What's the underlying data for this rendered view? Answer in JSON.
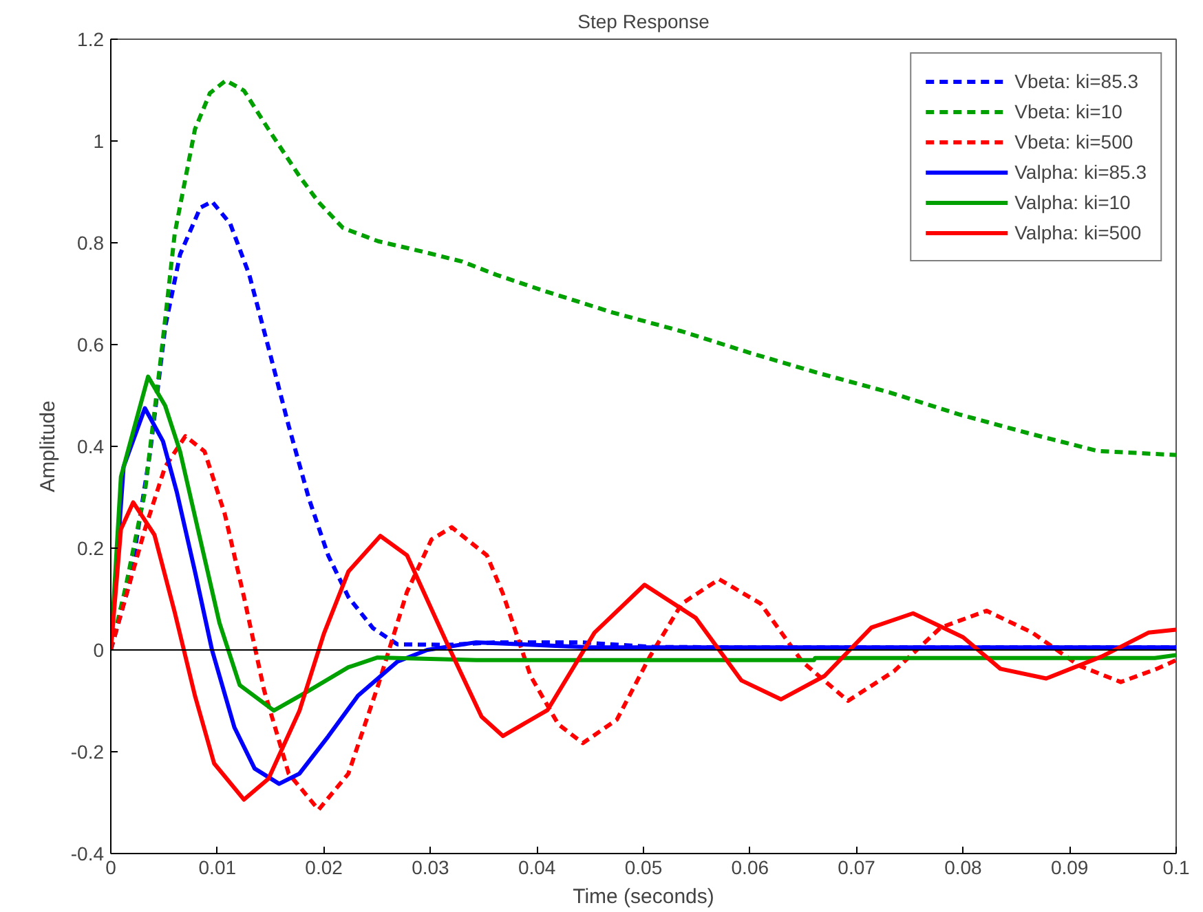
{
  "chart_data": {
    "type": "line",
    "title": "Step Response",
    "xlabel": "Time (seconds)",
    "ylabel": "Amplitude",
    "xlim": [
      0,
      0.1
    ],
    "ylim": [
      -0.4,
      1.2
    ],
    "xticks": [
      0,
      0.01,
      0.02,
      0.03,
      0.04,
      0.05,
      0.06,
      0.07,
      0.08,
      0.09,
      0.1
    ],
    "yticks": [
      -0.4,
      -0.2,
      0,
      0.2,
      0.4,
      0.6,
      0.8,
      1,
      1.2
    ],
    "grid": false,
    "legend": "top right",
    "ref_lines": [
      {
        "axis": "y",
        "value": 0,
        "color": "#000000",
        "line_style": "solid"
      }
    ],
    "series": [
      {
        "name": "Vbeta: ki=85.3",
        "color": "#0000ff",
        "line_style": "dashed",
        "x": [
          0,
          0.0018,
          0.0037,
          0.0051,
          0.0065,
          0.0084,
          0.0095,
          0.0112,
          0.013,
          0.0148,
          0.0167,
          0.0186,
          0.0204,
          0.0223,
          0.0246,
          0.0269,
          0.0316,
          0.0362,
          0.0441,
          0.0508,
          0.06,
          0.08,
          0.1
        ],
        "values": [
          0,
          0.134,
          0.39,
          0.634,
          0.777,
          0.869,
          0.881,
          0.838,
          0.737,
          0.594,
          0.44,
          0.297,
          0.186,
          0.104,
          0.043,
          0.011,
          0.01,
          0.015,
          0.015,
          0.006,
          0.005,
          0.005,
          0.005
        ]
      },
      {
        "name": "Vbeta: ki=10",
        "color": "#00a000",
        "line_style": "dashed",
        "x": [
          0,
          0.0014,
          0.0032,
          0.0047,
          0.006,
          0.0079,
          0.0093,
          0.0108,
          0.0125,
          0.0148,
          0.0177,
          0.0195,
          0.0218,
          0.0251,
          0.0292,
          0.033,
          0.0362,
          0.0406,
          0.0471,
          0.0536,
          0.0601,
          0.0666,
          0.0731,
          0.0796,
          0.0861,
          0.0926,
          0.1
        ],
        "values": [
          0,
          0.124,
          0.31,
          0.574,
          0.818,
          1.023,
          1.094,
          1.119,
          1.099,
          1.023,
          0.931,
          0.88,
          0.829,
          0.803,
          0.783,
          0.763,
          0.737,
          0.706,
          0.663,
          0.626,
          0.583,
          0.543,
          0.506,
          0.463,
          0.426,
          0.391,
          0.383
        ]
      },
      {
        "name": "Vbeta: ki=500",
        "color": "#ff0000",
        "line_style": "dashed",
        "x": [
          0,
          0.0014,
          0.0032,
          0.0051,
          0.007,
          0.0088,
          0.0107,
          0.0125,
          0.0144,
          0.0167,
          0.0195,
          0.0223,
          0.0251,
          0.0278,
          0.0301,
          0.032,
          0.0353,
          0.0368,
          0.0394,
          0.042,
          0.0443,
          0.0475,
          0.0506,
          0.0536,
          0.0571,
          0.061,
          0.0649,
          0.0692,
          0.0735,
          0.0779,
          0.0822,
          0.0865,
          0.0909,
          0.0948,
          0.0982,
          0.1
        ],
        "values": [
          0,
          0.104,
          0.237,
          0.36,
          0.42,
          0.39,
          0.267,
          0.104,
          -0.08,
          -0.243,
          -0.314,
          -0.243,
          -0.069,
          0.114,
          0.217,
          0.241,
          0.186,
          0.111,
          -0.051,
          -0.146,
          -0.183,
          -0.137,
          -0.013,
          0.091,
          0.139,
          0.091,
          -0.023,
          -0.1,
          -0.042,
          0.044,
          0.077,
          0.034,
          -0.031,
          -0.063,
          -0.037,
          -0.02
        ]
      },
      {
        "name": "Valpha: ki=85.3",
        "color": "#0000ff",
        "line_style": "solid",
        "x": [
          0,
          0.0012,
          0.0032,
          0.0049,
          0.0062,
          0.0079,
          0.0095,
          0.0116,
          0.0135,
          0.0158,
          0.0177,
          0.0204,
          0.0232,
          0.0269,
          0.0297,
          0.0343,
          0.045,
          0.1
        ],
        "values": [
          0,
          0.36,
          0.475,
          0.41,
          0.31,
          0.154,
          0,
          -0.152,
          -0.233,
          -0.263,
          -0.243,
          -0.17,
          -0.09,
          -0.023,
          0,
          0.015,
          0.005,
          0.005
        ]
      },
      {
        "name": "Valpha: ki=10",
        "color": "#00a000",
        "line_style": "solid",
        "x": [
          0,
          0.00095,
          0.0035,
          0.0051,
          0.0065,
          0.0083,
          0.0102,
          0.0121,
          0.0153,
          0.0186,
          0.0223,
          0.025,
          0.0343,
          0.066,
          0.0661,
          0.098,
          0.1
        ],
        "values": [
          0,
          0.34,
          0.537,
          0.48,
          0.39,
          0.226,
          0.053,
          -0.069,
          -0.119,
          -0.08,
          -0.034,
          -0.015,
          -0.02,
          -0.02,
          -0.016,
          -0.016,
          -0.01
        ]
      },
      {
        "name": "Valpha: ki=500",
        "color": "#ff0000",
        "line_style": "solid",
        "x": [
          0,
          0.00095,
          0.0021,
          0.0041,
          0.006,
          0.0079,
          0.0097,
          0.0125,
          0.0148,
          0.0177,
          0.02,
          0.0223,
          0.0253,
          0.0278,
          0.0316,
          0.0348,
          0.0368,
          0.041,
          0.0454,
          0.0501,
          0.0549,
          0.0592,
          0.0629,
          0.067,
          0.0714,
          0.0753,
          0.08,
          0.0835,
          0.0878,
          0.093,
          0.0974,
          0.1
        ],
        "values": [
          0,
          0.237,
          0.29,
          0.226,
          0.074,
          -0.09,
          -0.223,
          -0.294,
          -0.253,
          -0.12,
          0.032,
          0.154,
          0.224,
          0.186,
          0.011,
          -0.131,
          -0.169,
          -0.118,
          0.034,
          0.128,
          0.063,
          -0.06,
          -0.097,
          -0.051,
          0.044,
          0.072,
          0.025,
          -0.037,
          -0.056,
          -0.013,
          0.034,
          0.04
        ]
      }
    ]
  }
}
